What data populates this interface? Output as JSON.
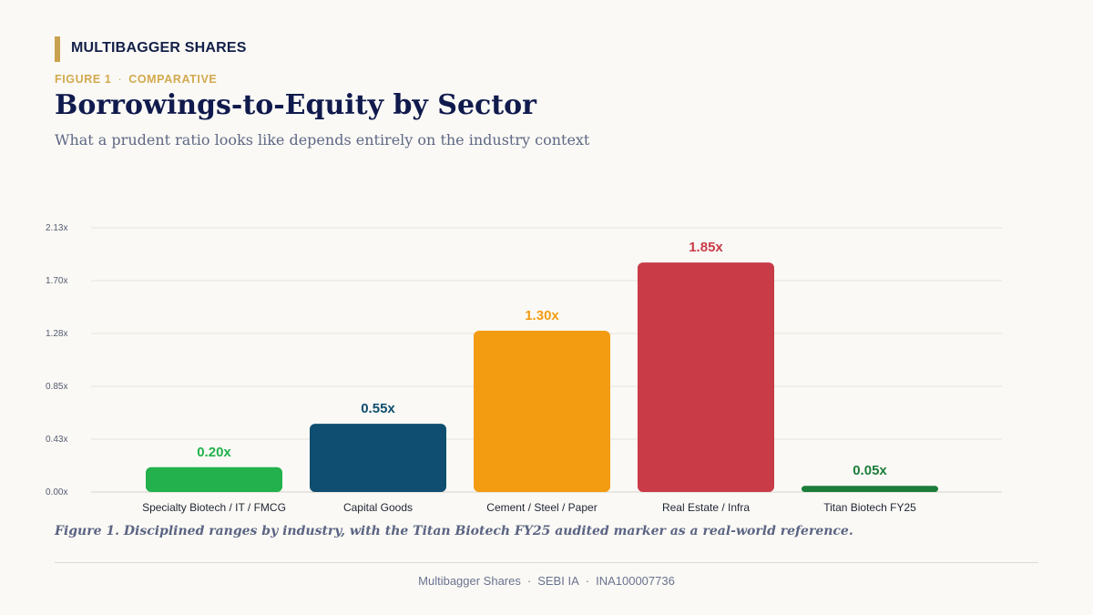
{
  "brand": "MULTIBAGGER SHARES",
  "kicker": {
    "figure": "FIGURE 1",
    "label": "COMPARATIVE"
  },
  "title": "Borrowings-to-Equity by Sector",
  "subtitle": "What a prudent ratio looks like depends entirely on the industry context",
  "caption": "Figure 1. Disciplined ranges by industry, with the Titan Biotech FY25 audited marker as a real-world reference.",
  "footer": {
    "name": "Multibagger Shares",
    "reg": "SEBI IA",
    "id": "INA100007736"
  },
  "chart_data": {
    "type": "bar",
    "title": "Borrowings-to-Equity by Sector",
    "categories": [
      "Specialty Biotech / IT / FMCG",
      "Capital Goods",
      "Cement / Steel / Paper",
      "Real Estate / Infra",
      "Titan Biotech FY25"
    ],
    "values": [
      0.2,
      0.55,
      1.3,
      1.85,
      0.05
    ],
    "value_labels": [
      "0.20x",
      "0.55x",
      "1.30x",
      "1.85x",
      "0.05x"
    ],
    "colors": [
      "#22b14c",
      "#0f4e70",
      "#f39c12",
      "#c93b47",
      "#1b7d3a"
    ],
    "label_colors": [
      "#22b14c",
      "#0f4e70",
      "#f39c12",
      "#c93b47",
      "#1b7d3a"
    ],
    "yticks": [
      "0.00x",
      "0.43x",
      "0.85x",
      "1.28x",
      "1.70x",
      "2.13x"
    ],
    "ylim": [
      0,
      2.13
    ],
    "grid": true,
    "xlabel": "",
    "ylabel": ""
  }
}
